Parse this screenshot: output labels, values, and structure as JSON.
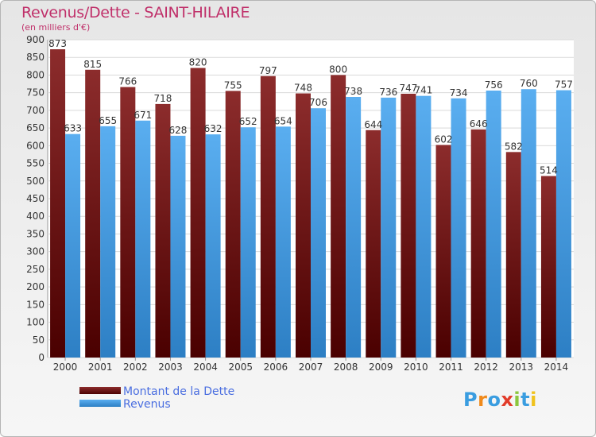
{
  "chart_data": {
    "type": "bar",
    "title": "Revenus/Dette - SAINT-HILAIRE",
    "subtitle": "(en milliers d'€)",
    "categories": [
      "2000",
      "2001",
      "2002",
      "2003",
      "2004",
      "2005",
      "2006",
      "2007",
      "2008",
      "2009",
      "2010",
      "2011",
      "2012",
      "2013",
      "2014"
    ],
    "series": [
      {
        "name": "Montant de la Dette",
        "color": "#7a1a1e",
        "values": [
          873,
          815,
          766,
          718,
          820,
          755,
          797,
          748,
          800,
          644,
          747,
          602,
          646,
          582,
          514
        ]
      },
      {
        "name": "Revenus",
        "color": "#4a9fe0",
        "values": [
          633,
          655,
          671,
          628,
          632,
          652,
          654,
          706,
          738,
          736,
          741,
          734,
          756,
          760,
          757
        ]
      }
    ],
    "ylim": [
      0,
      900
    ],
    "ytick_step": 50,
    "grid": true,
    "legend_position": "bottom-left"
  },
  "logo": {
    "text": "Proxiti"
  }
}
